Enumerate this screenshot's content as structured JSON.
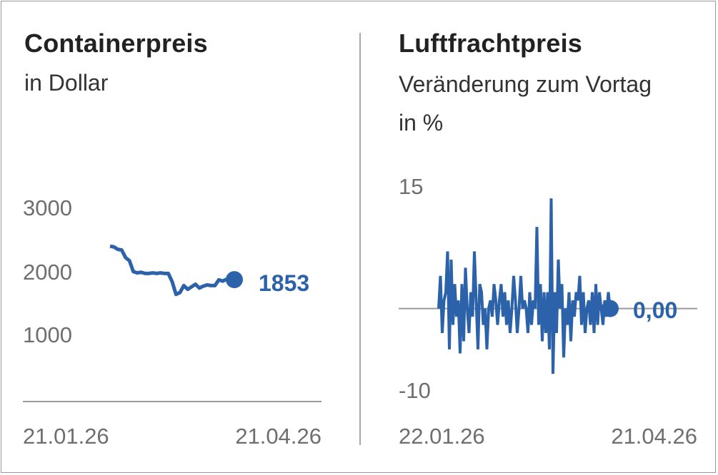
{
  "colors": {
    "line": "#2c62a9",
    "axis": "#9a9a9a",
    "text": "#222222",
    "tick": "#6e6e6e"
  },
  "chart_data": [
    {
      "type": "line",
      "title": "Containerpreis",
      "subtitle": "in Dollar",
      "yticks": [
        "3000",
        "2000",
        "1000"
      ],
      "ylim": [
        0,
        3000
      ],
      "x_range": [
        "21.01.26",
        "21.04.26"
      ],
      "end_label": "1853",
      "grid": false,
      "series": [
        {
          "values": [
            2380,
            2370,
            2330,
            2320,
            2200,
            2150,
            1980,
            1960,
            1970,
            1950,
            1950,
            1960,
            1950,
            1960,
            1950,
            1950,
            1820,
            1620,
            1650,
            1760,
            1700,
            1740,
            1780,
            1720,
            1750,
            1770,
            1760,
            1760,
            1850,
            1830,
            1860,
            1840,
            1853
          ]
        }
      ]
    },
    {
      "type": "line",
      "title": "Luftfrachtpreis",
      "subtitle": "Veränderung zum Vortag",
      "subtitle2": "in %",
      "yticks": [
        "15",
        "-10"
      ],
      "ylim": [
        -10,
        15
      ],
      "x_range": [
        "22.01.26",
        "21.04.26"
      ],
      "end_label": "0,00",
      "grid": false,
      "series": [
        {
          "values": [
            0,
            4,
            -3,
            1,
            2,
            7,
            -5,
            6,
            -2,
            3,
            -1,
            1,
            -5.5,
            3,
            -4,
            5,
            0,
            -3,
            2,
            -1,
            7,
            1,
            -5,
            3,
            2,
            -2,
            0,
            -5,
            0,
            1,
            -1,
            3,
            1,
            -2,
            1,
            3,
            -1,
            2,
            -2,
            1,
            -3,
            0,
            4,
            1,
            -3,
            0,
            4,
            0,
            1,
            0,
            -3,
            2,
            -2,
            1,
            0,
            10,
            -2,
            3,
            -4,
            2,
            -3,
            2,
            -5,
            13.5,
            -8,
            2,
            -3,
            6,
            0,
            3,
            -6,
            0,
            -2,
            2,
            -4,
            1,
            -1,
            2,
            1,
            4,
            -2,
            2,
            -3,
            0,
            1,
            -2,
            2,
            -3,
            3,
            -2,
            2,
            0,
            -2,
            1,
            -1,
            2,
            0
          ]
        }
      ]
    }
  ]
}
